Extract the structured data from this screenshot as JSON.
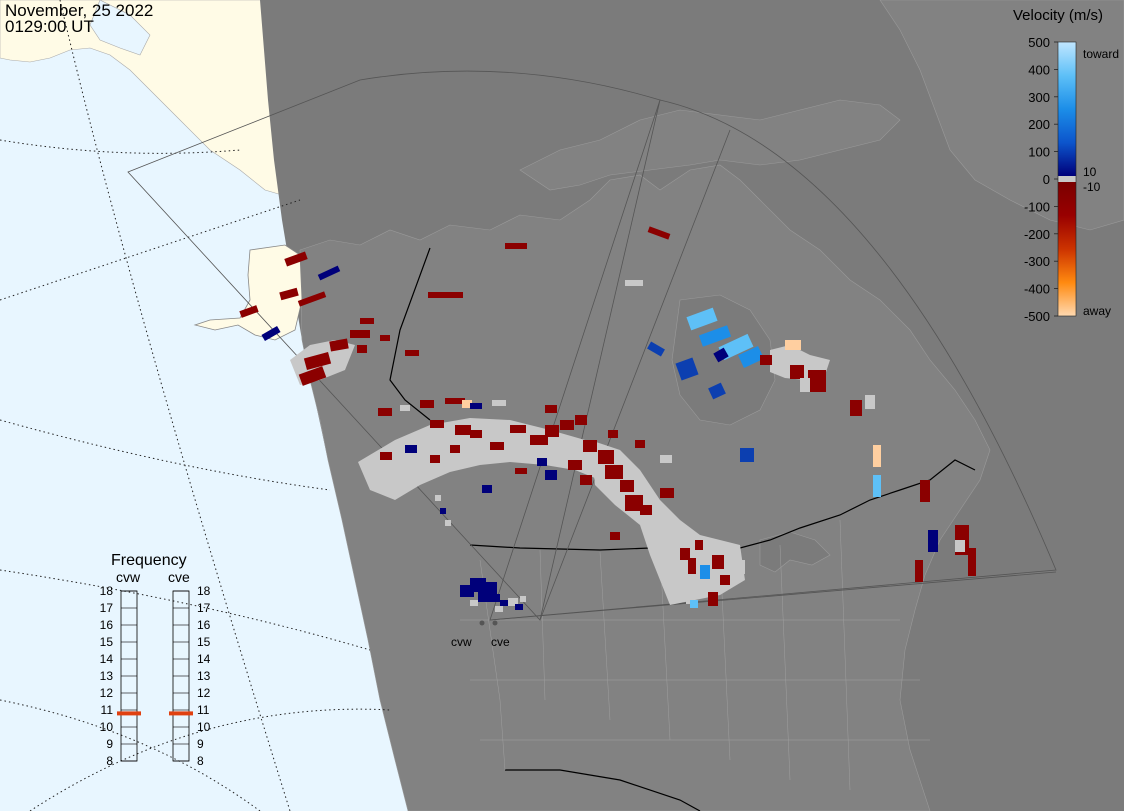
{
  "header": {
    "date": "November, 25 2022",
    "time": "0129:00 UT"
  },
  "legend": {
    "title": "Velocity (m/s)",
    "ticks": [
      "500",
      "400",
      "300",
      "200",
      "100",
      "0",
      "-100",
      "-200",
      "-300",
      "-400",
      "-500"
    ],
    "label_toward": "toward",
    "label_away": "away",
    "label_pos_thresh": "10",
    "label_neg_thresh": "-10",
    "stops": [
      {
        "v": 500,
        "color": "#b8e2ff"
      },
      {
        "v": 400,
        "color": "#5ec0f7"
      },
      {
        "v": 300,
        "color": "#1c8ee8"
      },
      {
        "v": 200,
        "color": "#0c55cc"
      },
      {
        "v": 100,
        "color": "#06229a"
      },
      {
        "v": 10,
        "color": "#00007a"
      },
      {
        "v": -10,
        "color": "#7a0000"
      },
      {
        "v": -100,
        "color": "#990000"
      },
      {
        "v": -200,
        "color": "#cc3300"
      },
      {
        "v": -300,
        "color": "#ee6600"
      },
      {
        "v": -400,
        "color": "#ff9a20"
      },
      {
        "v": -500,
        "color": "#ffd9b0"
      }
    ],
    "ground_scatter_color": "#c8c8c8"
  },
  "frequency": {
    "title": "Frequency",
    "radar_left": "cvw",
    "radar_right": "cve",
    "ticks": [
      "18",
      "17",
      "16",
      "15",
      "14",
      "13",
      "12",
      "11",
      "10",
      "9",
      "8"
    ],
    "cvw_mhz": 10.8,
    "cve_mhz": 10.8,
    "marker_color": "#e04010"
  },
  "radars": [
    {
      "name": "cvw",
      "label": "cvw"
    },
    {
      "name": "cve",
      "label": "cve"
    }
  ],
  "map_colors": {
    "ocean_day": "#e8f6ff",
    "land_day": "#fffbe6",
    "night_overlay": "#7b7b7b",
    "land_night": "#828282",
    "boundary": "#000000",
    "fov_outline": "#555555"
  }
}
